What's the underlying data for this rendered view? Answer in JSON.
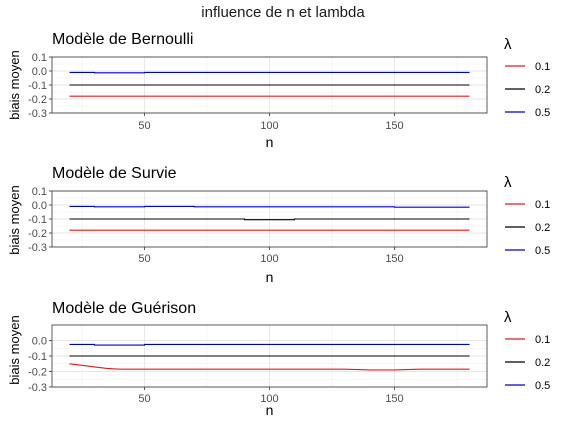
{
  "figure": {
    "title": "influence de n et lambda"
  },
  "chart_data": [
    {
      "type": "line",
      "title": "Modèle de Bernoulli",
      "xlabel": "n",
      "ylabel": "biais moyen",
      "xlim": [
        13,
        187
      ],
      "ylim": [
        -0.3,
        0.1
      ],
      "x_ticks": [
        50,
        100,
        150
      ],
      "y_ticks": [
        -0.3,
        -0.2,
        -0.1,
        0.0,
        0.1
      ],
      "y_tick_labels": [
        "-0.3",
        "-0.2",
        "-0.1",
        "0.0",
        "0.1"
      ],
      "grid": true,
      "legend": {
        "title": "λ",
        "position": "right"
      },
      "series": [
        {
          "name": "0.1",
          "color": "#e41a1c",
          "x": [
            20,
            180
          ],
          "y": [
            -0.18,
            -0.18
          ]
        },
        {
          "name": "0.2",
          "color": "#000000",
          "x": [
            20,
            180
          ],
          "y": [
            -0.1,
            -0.1
          ]
        },
        {
          "name": "0.5",
          "color": "#0000cc",
          "x": [
            20,
            30,
            30,
            50,
            50,
            180
          ],
          "y": [
            -0.01,
            -0.01,
            -0.013,
            -0.013,
            -0.01,
            -0.01
          ]
        }
      ]
    },
    {
      "type": "line",
      "title": "Modèle de Survie",
      "xlabel": "n",
      "ylabel": "biais moyen",
      "xlim": [
        13,
        187
      ],
      "ylim": [
        -0.3,
        0.1
      ],
      "x_ticks": [
        50,
        100,
        150
      ],
      "y_ticks": [
        -0.3,
        -0.2,
        -0.1,
        0.0,
        0.1
      ],
      "y_tick_labels": [
        "-0.3",
        "-0.2",
        "-0.1",
        "0.0",
        "0.1"
      ],
      "grid": true,
      "legend": {
        "title": "λ",
        "position": "right"
      },
      "series": [
        {
          "name": "0.1",
          "color": "#e41a1c",
          "x": [
            20,
            180
          ],
          "y": [
            -0.18,
            -0.18
          ]
        },
        {
          "name": "0.2",
          "color": "#000000",
          "x": [
            20,
            90,
            90,
            110,
            110,
            180
          ],
          "y": [
            -0.1,
            -0.1,
            -0.105,
            -0.105,
            -0.1,
            -0.1
          ]
        },
        {
          "name": "0.5",
          "color": "#0000cc",
          "x": [
            20,
            30,
            30,
            50,
            50,
            70,
            70,
            150,
            150,
            180
          ],
          "y": [
            -0.01,
            -0.01,
            -0.013,
            -0.013,
            -0.01,
            -0.01,
            -0.013,
            -0.013,
            -0.016,
            -0.016
          ]
        }
      ]
    },
    {
      "type": "line",
      "title": "Modèle de Guérison",
      "xlabel": "n",
      "ylabel": "biais moyen",
      "xlim": [
        13,
        187
      ],
      "ylim": [
        -0.3,
        0.1
      ],
      "x_ticks": [
        50,
        100,
        150
      ],
      "y_ticks": [
        -0.3,
        -0.2,
        -0.1,
        0.0
      ],
      "y_tick_labels": [
        "-0.3",
        "-0.2",
        "-0.1",
        "0.0"
      ],
      "grid": true,
      "legend": {
        "title": "λ",
        "position": "right"
      },
      "series": [
        {
          "name": "0.1",
          "color": "#e41a1c",
          "x": [
            20,
            25,
            30,
            35,
            40,
            130,
            140,
            150,
            160,
            180
          ],
          "y": [
            -0.15,
            -0.16,
            -0.17,
            -0.18,
            -0.185,
            -0.185,
            -0.19,
            -0.19,
            -0.185,
            -0.185
          ]
        },
        {
          "name": "0.2",
          "color": "#000000",
          "x": [
            20,
            180
          ],
          "y": [
            -0.1,
            -0.1
          ]
        },
        {
          "name": "0.5",
          "color": "#0000cc",
          "x": [
            20,
            30,
            30,
            50,
            50,
            180
          ],
          "y": [
            -0.025,
            -0.025,
            -0.03,
            -0.03,
            -0.025,
            -0.025
          ]
        }
      ]
    }
  ]
}
